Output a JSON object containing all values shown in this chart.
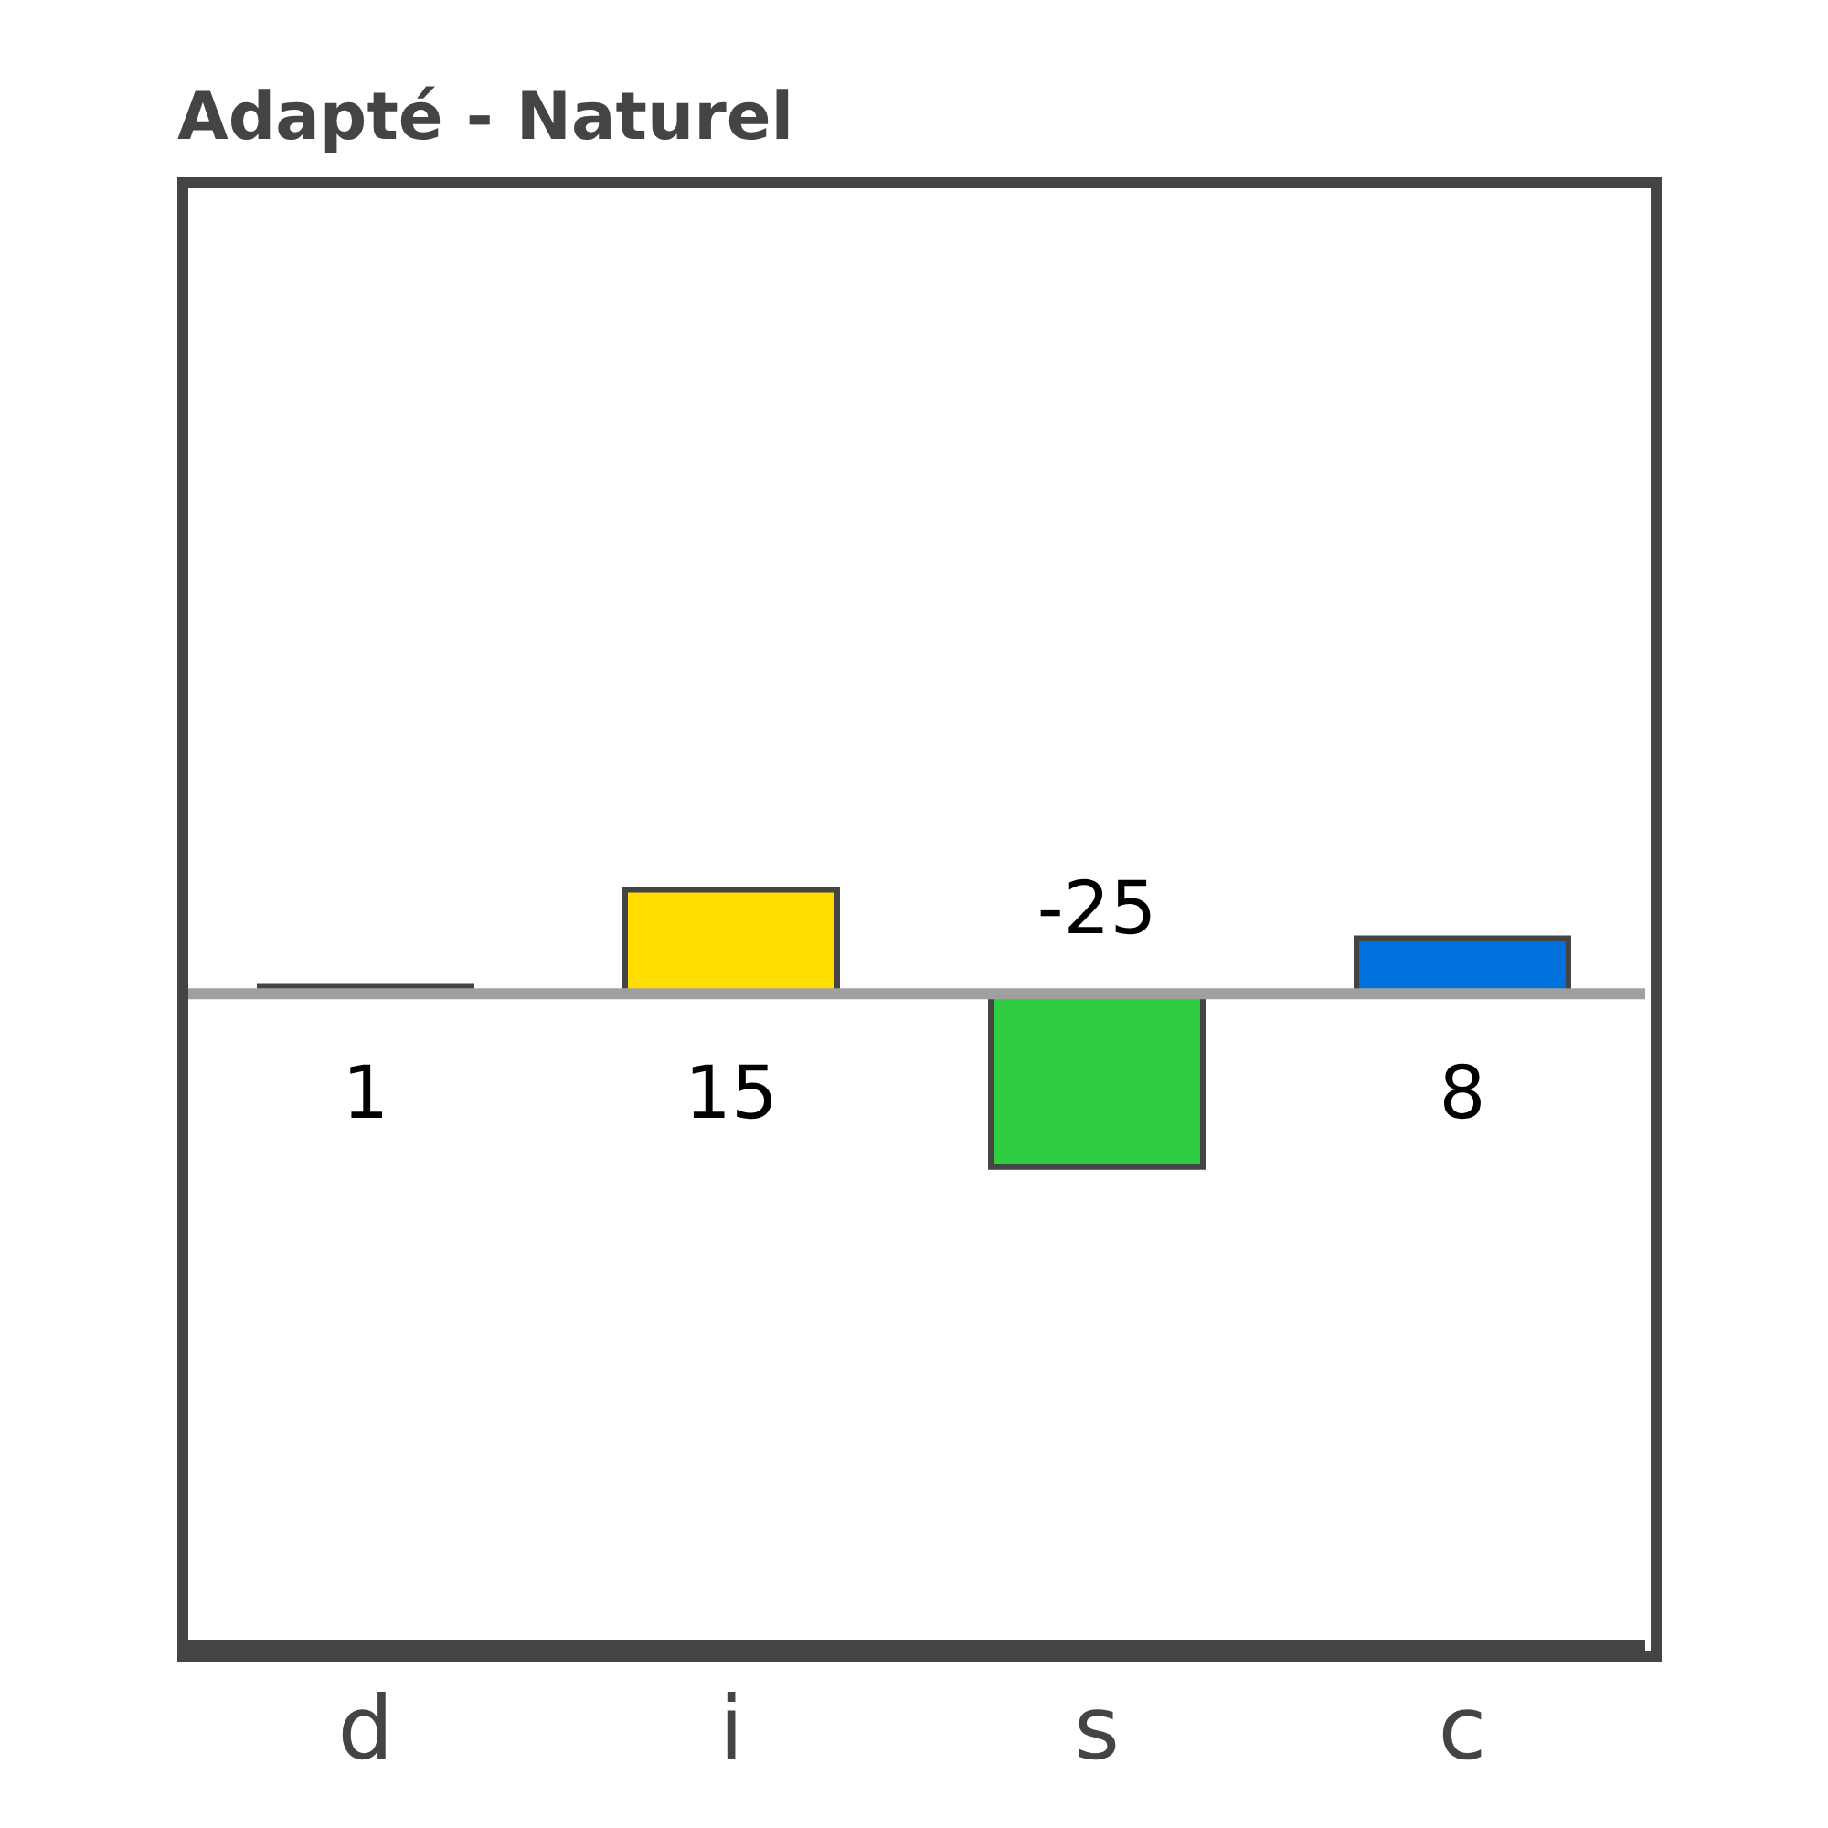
{
  "chart_data": {
    "type": "bar",
    "title": "Adapté - Naturel",
    "categories": [
      "d",
      "i",
      "s",
      "c"
    ],
    "values": [
      1,
      15,
      -25,
      8
    ],
    "colors": [
      "#444444",
      "#ffdd00",
      "#2ecc40",
      "#0070dd"
    ],
    "ylim": [
      -94,
      117
    ],
    "tick_labels": "x",
    "ref_lines": [
      {
        "axis": "y",
        "value": 0,
        "color": "#a0a0a0"
      }
    ],
    "data_labels": true
  }
}
